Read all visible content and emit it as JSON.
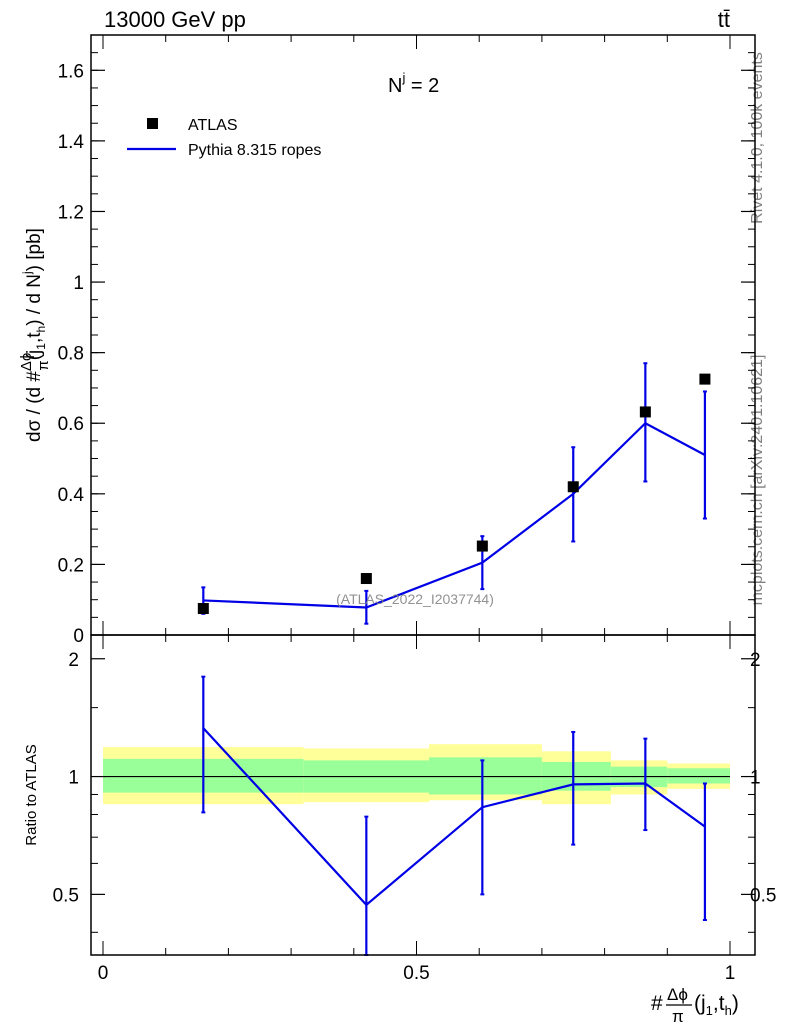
{
  "header": {
    "energy_label": "13000 GeV pp",
    "process_label": "tt̄"
  },
  "side_labels": {
    "rivet": "Rivet 4.1.0,  100k events",
    "mcplots": "mcplots.cern.ch [arXiv:2401.10621]"
  },
  "watermark": "(ATLAS_2022_I2037744)",
  "top_panel_label": "N",
  "top_panel_label_sup": "j",
  "top_panel_label_value": " = 2",
  "legend": {
    "data_label": "ATLAS",
    "mc_label": "Pythia 8.315 ropes"
  },
  "colors": {
    "data": "#000000",
    "mc": "#0000e6",
    "band_inner": "#99ff99",
    "band_outer": "#ffff99"
  },
  "axis_labels": {
    "top_ylabel": "dσ / (d #",
    "top_ylabel_frac_num": "Δϕ",
    "top_ylabel_frac_den": "π",
    "top_ylabel_tail": "(j",
    "top_ylabel_sub1": "1",
    "top_ylabel_mid": ",t",
    "top_ylabel_sub2": "h",
    "top_ylabel_end": ") / d N",
    "top_ylabel_sup": "j",
    "top_ylabel_unit": ") [pb]",
    "ratio_ylabel": "Ratio to ATLAS",
    "xlabel_prefix": "#",
    "xlabel_frac_num": "Δϕ",
    "xlabel_frac_den": "π",
    "xlabel_tail": "(j",
    "xlabel_sub1": "1",
    "xlabel_mid": ",t",
    "xlabel_sub2": "h",
    "xlabel_end": ")"
  },
  "chart_data": [
    {
      "type": "scatter",
      "panel": "main",
      "title": "N^j = 2",
      "xlim": [
        0,
        1
      ],
      "ylim": [
        0,
        1.7
      ],
      "yticks": [
        0,
        0.2,
        0.4,
        0.6,
        0.8,
        1,
        1.2,
        1.4,
        1.6
      ],
      "ytick_labels": [
        "0",
        "0.2",
        "0.4",
        "0.6",
        "0.8",
        "1",
        "1.2",
        "1.4",
        "1.6"
      ],
      "series": [
        {
          "name": "ATLAS",
          "style": "markers",
          "x": [
            0.16,
            0.42,
            0.605,
            0.75,
            0.865,
            0.96
          ],
          "y": [
            0.075,
            0.16,
            0.252,
            0.42,
            0.632,
            0.725
          ]
        },
        {
          "name": "Pythia 8.315 ropes",
          "style": "line_with_errors",
          "x": [
            0.16,
            0.42,
            0.605,
            0.75,
            0.865,
            0.96
          ],
          "y": [
            0.098,
            0.078,
            0.205,
            0.4,
            0.6,
            0.51
          ],
          "err_low": [
            0.06,
            0.032,
            0.13,
            0.265,
            0.435,
            0.33
          ],
          "err_high": [
            0.135,
            0.125,
            0.28,
            0.532,
            0.77,
            0.69
          ]
        }
      ]
    },
    {
      "type": "line",
      "panel": "ratio",
      "ylabel": "Ratio to ATLAS",
      "xlabel": "#Δϕ/π(j1,th)",
      "xlim": [
        0,
        1
      ],
      "ylim": [
        0.35,
        2.3
      ],
      "yscale": "log",
      "yticks": [
        0.5,
        1,
        2
      ],
      "ytick_labels": [
        "0.5",
        "1",
        "2"
      ],
      "xticks": [
        0,
        0.5,
        1
      ],
      "xtick_labels": [
        "0",
        "0.5",
        "1"
      ],
      "bands": {
        "bin_edges": [
          0,
          0.32,
          0.52,
          0.7,
          0.81,
          0.9,
          1
        ],
        "inner_low": [
          0.91,
          0.91,
          0.9,
          0.92,
          0.94,
          0.96
        ],
        "inner_high": [
          1.11,
          1.1,
          1.12,
          1.09,
          1.06,
          1.05
        ],
        "outer_low": [
          0.85,
          0.86,
          0.87,
          0.85,
          0.9,
          0.93
        ],
        "outer_high": [
          1.19,
          1.18,
          1.21,
          1.16,
          1.1,
          1.08
        ]
      },
      "series": [
        {
          "name": "Pythia 8.315 ropes / ATLAS",
          "x": [
            0.16,
            0.42,
            0.605,
            0.75,
            0.865,
            0.96
          ],
          "y": [
            1.33,
            0.47,
            0.835,
            0.955,
            0.96,
            0.745
          ],
          "err_low": [
            0.81,
            0.35,
            0.5,
            0.67,
            0.73,
            0.43
          ],
          "err_high": [
            1.8,
            0.79,
            1.1,
            1.3,
            1.25,
            0.96
          ]
        }
      ]
    }
  ]
}
